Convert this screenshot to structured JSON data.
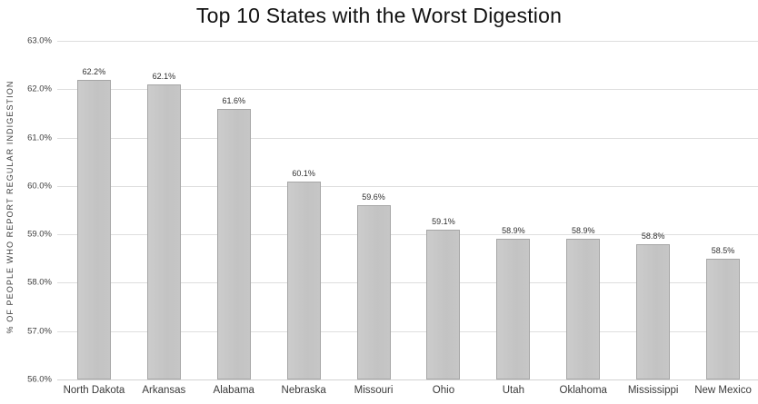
{
  "chart_data": {
    "type": "bar",
    "title": "Top 10 States with the Worst Digestion",
    "xlabel": "",
    "ylabel": "% OF PEOPLE WHO REPORT REGULAR INDIGESTION",
    "categories": [
      "North Dakota",
      "Arkansas",
      "Alabama",
      "Nebraska",
      "Missouri",
      "Ohio",
      "Utah",
      "Oklahoma",
      "Mississippi",
      "New Mexico"
    ],
    "values": [
      62.2,
      62.1,
      61.6,
      60.1,
      59.6,
      59.1,
      58.9,
      58.9,
      58.8,
      58.5
    ],
    "data_labels": [
      "62.2%",
      "62.1%",
      "61.6%",
      "60.1%",
      "59.6%",
      "59.1%",
      "58.9%",
      "58.9%",
      "58.8%",
      "58.5%"
    ],
    "ylim": [
      56.0,
      63.0
    ],
    "ytick_step": 1.0,
    "ytick_labels": [
      "56.0%",
      "57.0%",
      "58.0%",
      "59.0%",
      "60.0%",
      "61.0%",
      "62.0%",
      "63.0%"
    ],
    "grid": true,
    "legend": false,
    "colors": {
      "bar_fill": "#c6c6c6",
      "bar_border": "#a6a6a6",
      "gridline": "#dedede",
      "tick_text": "#404040",
      "title_text": "#111111",
      "background": "#ffffff"
    }
  }
}
